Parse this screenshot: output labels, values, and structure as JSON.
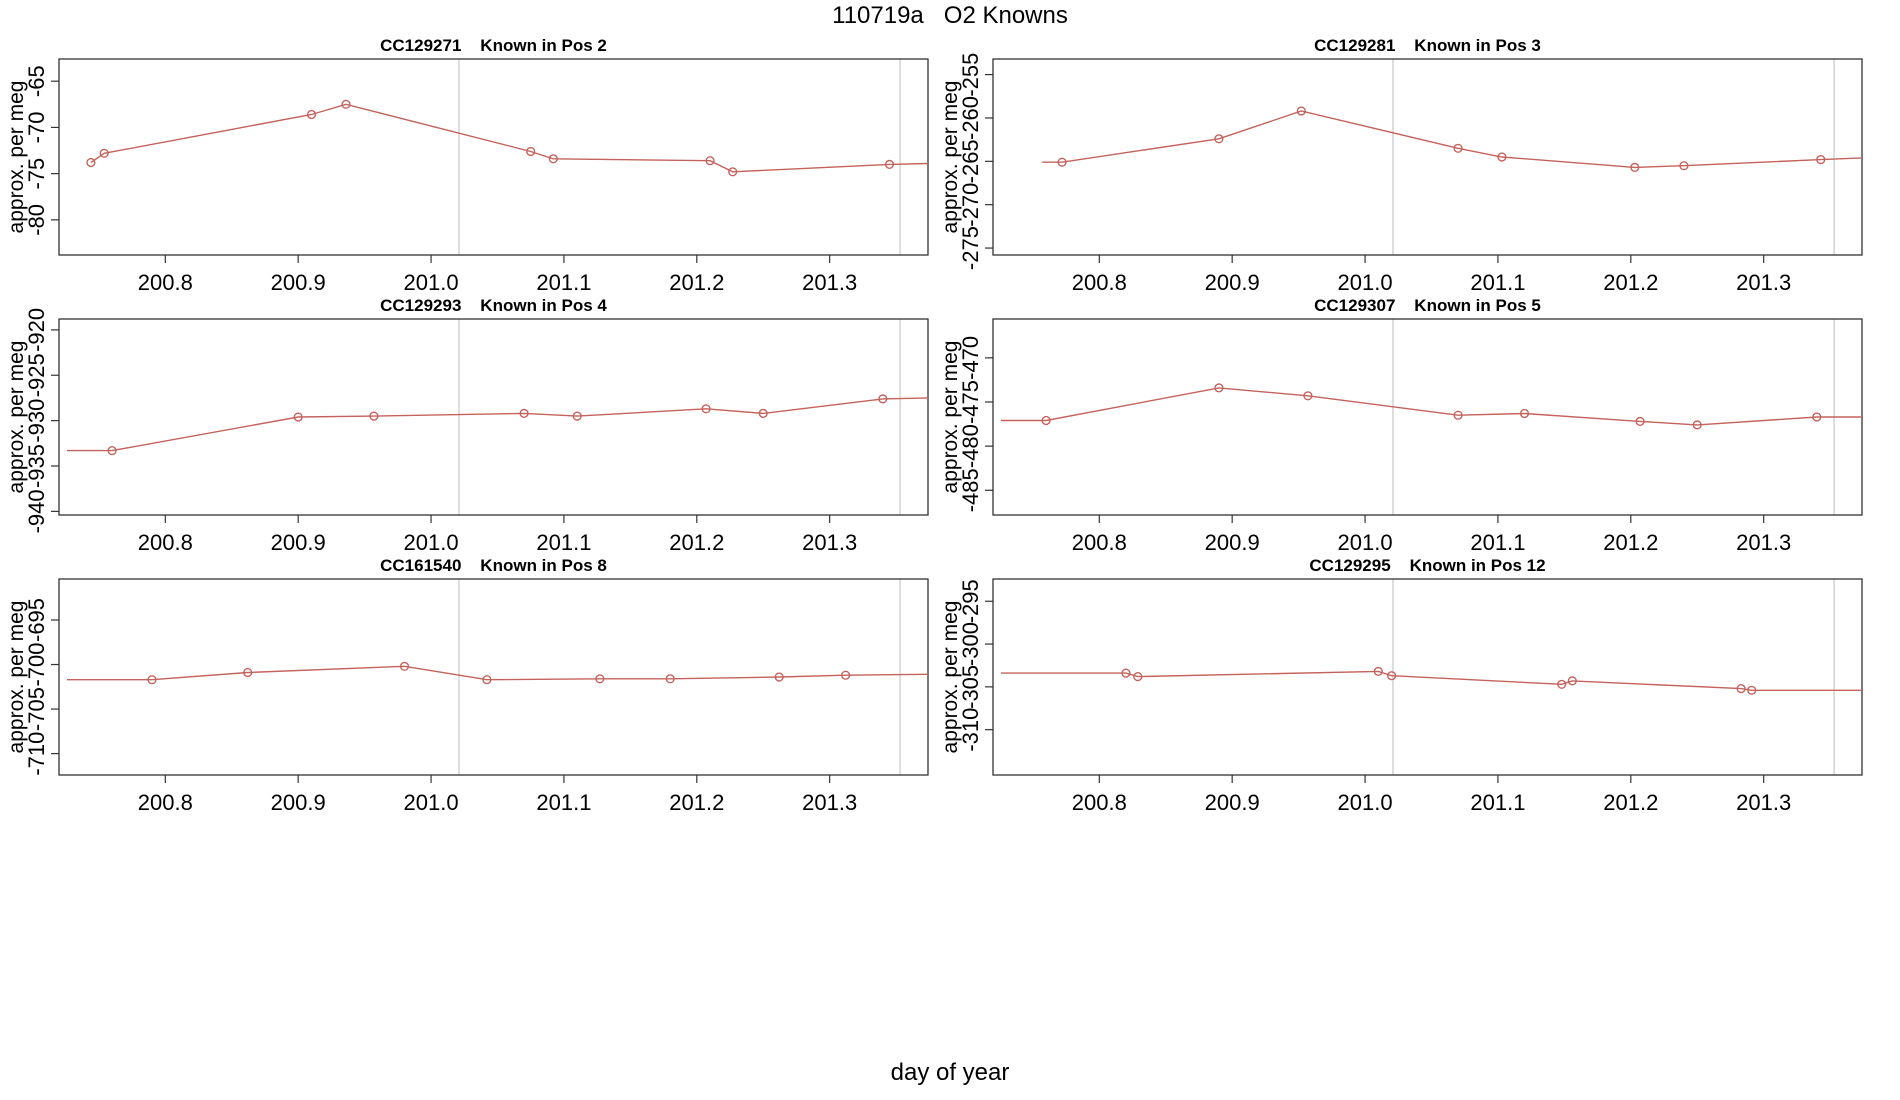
{
  "figure": {
    "title": "110719a   O2 Knowns",
    "xlabel": "day of year"
  },
  "style": {
    "series_color": "#c4625c",
    "reference_line_color": "#d6d6d6",
    "axis_color": "#333333",
    "text_color": "#000000",
    "background": "#ffffff",
    "marker": "open-circle"
  },
  "chart_data": [
    {
      "type": "line",
      "title": "CC129271    Known in Pos 2",
      "ylabel": "approx. per meg",
      "x_ticks": [
        200.8,
        200.9,
        201.0,
        201.1,
        201.2,
        201.3
      ],
      "x_tick_labels": [
        "200.8",
        "200.9",
        "201.0",
        "201.1",
        "201.2",
        "201.3"
      ],
      "y_ticks": [
        -65,
        -70,
        -75,
        -80
      ],
      "y_tick_labels": [
        "-65",
        "-70",
        "-75",
        "-80"
      ],
      "x_range": [
        200.72,
        201.374
      ],
      "y_range": [
        -83.8,
        -62.6
      ],
      "reference_x": [
        201.021,
        201.353
      ],
      "points": {
        "x": [
          200.744,
          200.754,
          200.91,
          200.936,
          201.075,
          201.092,
          201.21,
          201.227,
          201.345
        ],
        "y": [
          -73.8,
          -72.8,
          -68.6,
          -67.5,
          -72.6,
          -73.4,
          -73.6,
          -74.8,
          -74.0
        ]
      },
      "line": {
        "x": [
          200.744,
          200.754,
          200.91,
          200.936,
          201.075,
          201.092,
          201.21,
          201.227,
          201.345,
          201.374
        ],
        "y": [
          -73.8,
          -72.8,
          -68.6,
          -67.5,
          -72.6,
          -73.4,
          -73.6,
          -74.8,
          -74.0,
          -73.9
        ]
      }
    },
    {
      "type": "line",
      "title": "CC129281    Known in Pos 3",
      "ylabel": "approx. per meg",
      "x_ticks": [
        200.8,
        200.9,
        201.0,
        201.1,
        201.2,
        201.3
      ],
      "x_tick_labels": [
        "200.8",
        "200.9",
        "201.0",
        "201.1",
        "201.2",
        "201.3"
      ],
      "y_ticks": [
        -255,
        -260,
        -265,
        -270,
        -275
      ],
      "y_tick_labels": [
        "-255",
        "-260",
        "-265",
        "-270",
        "-275"
      ],
      "x_range": [
        200.72,
        201.374
      ],
      "y_range": [
        -275.8,
        -253.2
      ],
      "reference_x": [
        201.021,
        201.353
      ],
      "points": {
        "x": [
          200.772,
          200.89,
          200.952,
          201.07,
          201.103,
          201.203,
          201.24,
          201.343
        ],
        "y": [
          -265.1,
          -262.4,
          -259.2,
          -263.5,
          -264.5,
          -265.7,
          -265.5,
          -264.8
        ]
      },
      "line": {
        "x": [
          200.757,
          200.772,
          200.89,
          200.952,
          201.07,
          201.103,
          201.203,
          201.24,
          201.343,
          201.374
        ],
        "y": [
          -265.1,
          -265.1,
          -262.4,
          -259.2,
          -263.5,
          -264.5,
          -265.7,
          -265.5,
          -264.8,
          -264.6
        ]
      }
    },
    {
      "type": "line",
      "title": "CC129293    Known in Pos 4",
      "ylabel": "approx. per meg",
      "x_ticks": [
        200.8,
        200.9,
        201.0,
        201.1,
        201.2,
        201.3
      ],
      "x_tick_labels": [
        "200.8",
        "200.9",
        "201.0",
        "201.1",
        "201.2",
        "201.3"
      ],
      "y_ticks": [
        -920,
        -925,
        -930,
        -935,
        -940
      ],
      "y_tick_labels": [
        "-920",
        "-925",
        "-930",
        "-935",
        "-940"
      ],
      "x_range": [
        200.72,
        201.374
      ],
      "y_range": [
        -940.4,
        -918.8
      ],
      "reference_x": [
        201.021,
        201.353
      ],
      "points": {
        "x": [
          200.76,
          200.9,
          200.957,
          201.07,
          201.11,
          201.207,
          201.25,
          201.34
        ],
        "y": [
          -933.3,
          -929.6,
          -929.5,
          -929.2,
          -929.5,
          -928.7,
          -929.2,
          -927.6
        ]
      },
      "line": {
        "x": [
          200.726,
          200.76,
          200.9,
          200.957,
          201.07,
          201.11,
          201.207,
          201.25,
          201.34,
          201.374
        ],
        "y": [
          -933.3,
          -933.3,
          -929.6,
          -929.5,
          -929.2,
          -929.5,
          -928.7,
          -929.2,
          -927.6,
          -927.5
        ]
      }
    },
    {
      "type": "line",
      "title": "CC129307    Known in Pos 5",
      "ylabel": "approx. per meg",
      "x_ticks": [
        200.8,
        200.9,
        201.0,
        201.1,
        201.2,
        201.3
      ],
      "x_tick_labels": [
        "200.8",
        "200.9",
        "201.0",
        "201.1",
        "201.2",
        "201.3"
      ],
      "y_ticks": [
        -470,
        -475,
        -480,
        -485
      ],
      "y_tick_labels": [
        "-470",
        "-475",
        "-480",
        "-485"
      ],
      "x_range": [
        200.72,
        201.374
      ],
      "y_range": [
        -487.8,
        -465.6
      ],
      "reference_x": [
        201.021,
        201.353
      ],
      "points": {
        "x": [
          200.76,
          200.89,
          200.957,
          201.07,
          201.12,
          201.207,
          201.25,
          201.34
        ],
        "y": [
          -477.1,
          -473.4,
          -474.3,
          -476.5,
          -476.3,
          -477.2,
          -477.6,
          -476.7
        ]
      },
      "line": {
        "x": [
          200.726,
          200.76,
          200.89,
          200.957,
          201.07,
          201.12,
          201.207,
          201.25,
          201.34,
          201.374
        ],
        "y": [
          -477.1,
          -477.1,
          -473.4,
          -474.3,
          -476.5,
          -476.3,
          -477.2,
          -477.6,
          -476.7,
          -476.7
        ]
      }
    },
    {
      "type": "line",
      "title": "CC161540    Known in Pos 8",
      "ylabel": "approx. per meg",
      "x_ticks": [
        200.8,
        200.9,
        201.0,
        201.1,
        201.2,
        201.3
      ],
      "x_tick_labels": [
        "200.8",
        "200.9",
        "201.0",
        "201.1",
        "201.2",
        "201.3"
      ],
      "y_ticks": [
        -695,
        -700,
        -705,
        -710
      ],
      "y_tick_labels": [
        "-695",
        "-700",
        "-705",
        "-710"
      ],
      "x_range": [
        200.72,
        201.374
      ],
      "y_range": [
        -712.4,
        -690.4
      ],
      "reference_x": [
        201.021,
        201.353
      ],
      "points": {
        "x": [
          200.79,
          200.862,
          200.98,
          201.042,
          201.127,
          201.18,
          201.262,
          201.312
        ],
        "y": [
          -701.7,
          -700.9,
          -700.2,
          -701.7,
          -701.6,
          -701.6,
          -701.4,
          -701.2
        ]
      },
      "line": {
        "x": [
          200.726,
          200.79,
          200.862,
          200.98,
          201.042,
          201.127,
          201.18,
          201.262,
          201.312,
          201.374
        ],
        "y": [
          -701.7,
          -701.7,
          -700.9,
          -700.2,
          -701.7,
          -701.6,
          -701.6,
          -701.4,
          -701.2,
          -701.1
        ]
      }
    },
    {
      "type": "line",
      "title": "CC129295    Known in Pos 12",
      "ylabel": "approx. per meg",
      "x_ticks": [
        200.8,
        200.9,
        201.0,
        201.1,
        201.2,
        201.3
      ],
      "x_tick_labels": [
        "200.8",
        "200.9",
        "201.0",
        "201.1",
        "201.2",
        "201.3"
      ],
      "y_ticks": [
        -295,
        -300,
        -305,
        -310
      ],
      "y_tick_labels": [
        "-295",
        "-300",
        "-305",
        "-310"
      ],
      "x_range": [
        200.72,
        201.374
      ],
      "y_range": [
        -315.3,
        -292.4
      ],
      "reference_x": [
        201.021,
        201.353
      ],
      "points": {
        "x": [
          200.82,
          200.829,
          201.01,
          201.02,
          201.148,
          201.156,
          201.283,
          201.291
        ],
        "y": [
          -303.4,
          -303.8,
          -303.2,
          -303.7,
          -304.7,
          -304.3,
          -305.2,
          -305.4
        ]
      },
      "line": {
        "x": [
          200.726,
          200.82,
          200.829,
          201.01,
          201.02,
          201.148,
          201.156,
          201.283,
          201.291,
          201.374
        ],
        "y": [
          -303.4,
          -303.4,
          -303.8,
          -303.2,
          -303.7,
          -304.7,
          -304.3,
          -305.2,
          -305.4,
          -305.4
        ]
      }
    }
  ]
}
